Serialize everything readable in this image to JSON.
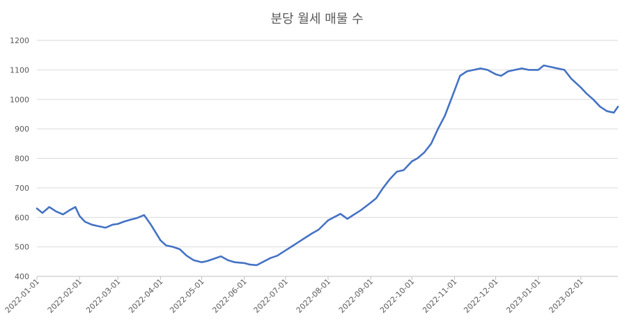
{
  "chart_data": {
    "type": "line",
    "title": "분당 월세 매물 수",
    "xlabel": "",
    "ylabel": "",
    "ylim": [
      400,
      1200
    ],
    "y_ticks": [
      400,
      500,
      600,
      700,
      800,
      900,
      1000,
      1100,
      1200
    ],
    "x_ticks": [
      "2022-01-01",
      "2022-02-01",
      "2022-03-01",
      "2022-04-01",
      "2022-05-01",
      "2022-06-01",
      "2022-07-01",
      "2022-08-01",
      "2022-09-01",
      "2022-10-01",
      "2022-11-01",
      "2022-12-01",
      "2023-01-01",
      "2023-02-01"
    ],
    "xlim": [
      "2022-01-01",
      "2023-02-28"
    ],
    "grid": "horizontal",
    "legend": "none",
    "color": "#4472c4",
    "series": [
      {
        "x": [
          "2022-01-01",
          "2022-01-05",
          "2022-01-10",
          "2022-01-15",
          "2022-01-20",
          "2022-01-25",
          "2022-01-29",
          "2022-02-01",
          "2022-02-05",
          "2022-02-10",
          "2022-02-15",
          "2022-02-20",
          "2022-02-25",
          "2022-03-01",
          "2022-03-05",
          "2022-03-10",
          "2022-03-15",
          "2022-03-20",
          "2022-03-25",
          "2022-04-01",
          "2022-04-05",
          "2022-04-10",
          "2022-04-15",
          "2022-04-20",
          "2022-04-25",
          "2022-05-01",
          "2022-05-05",
          "2022-05-10",
          "2022-05-15",
          "2022-05-20",
          "2022-05-25",
          "2022-06-01",
          "2022-06-05",
          "2022-06-10",
          "2022-06-15",
          "2022-06-20",
          "2022-06-25",
          "2022-07-01",
          "2022-07-05",
          "2022-07-10",
          "2022-07-15",
          "2022-07-20",
          "2022-07-25",
          "2022-08-01",
          "2022-08-05",
          "2022-08-10",
          "2022-08-15",
          "2022-08-20",
          "2022-08-25",
          "2022-09-01",
          "2022-09-05",
          "2022-09-10",
          "2022-09-15",
          "2022-09-20",
          "2022-09-25",
          "2022-10-01",
          "2022-10-05",
          "2022-10-10",
          "2022-10-15",
          "2022-10-20",
          "2022-10-25",
          "2022-11-01",
          "2022-11-05",
          "2022-11-10",
          "2022-11-15",
          "2022-11-20",
          "2022-11-25",
          "2022-12-01",
          "2022-12-05",
          "2022-12-10",
          "2022-12-15",
          "2022-12-20",
          "2022-12-25",
          "2023-01-01",
          "2023-01-05",
          "2023-01-10",
          "2023-01-15",
          "2023-01-20",
          "2023-01-25",
          "2023-02-01",
          "2023-02-05",
          "2023-02-10",
          "2023-02-15",
          "2023-02-20",
          "2023-02-25",
          "2023-02-28"
        ],
        "values": [
          630,
          615,
          635,
          620,
          610,
          625,
          635,
          605,
          585,
          575,
          570,
          565,
          575,
          578,
          585,
          592,
          598,
          608,
          575,
          522,
          505,
          500,
          492,
          470,
          455,
          448,
          452,
          460,
          468,
          455,
          448,
          445,
          440,
          438,
          450,
          462,
          470,
          488,
          500,
          515,
          530,
          545,
          558,
          590,
          600,
          612,
          595,
          610,
          625,
          650,
          665,
          700,
          730,
          755,
          760,
          790,
          800,
          820,
          850,
          900,
          945,
          1030,
          1080,
          1095,
          1100,
          1105,
          1100,
          1085,
          1080,
          1095,
          1100,
          1105,
          1100,
          1100,
          1115,
          1110,
          1105,
          1100,
          1070,
          1040,
          1020,
          1000,
          975,
          960,
          955,
          975
        ]
      }
    ]
  }
}
